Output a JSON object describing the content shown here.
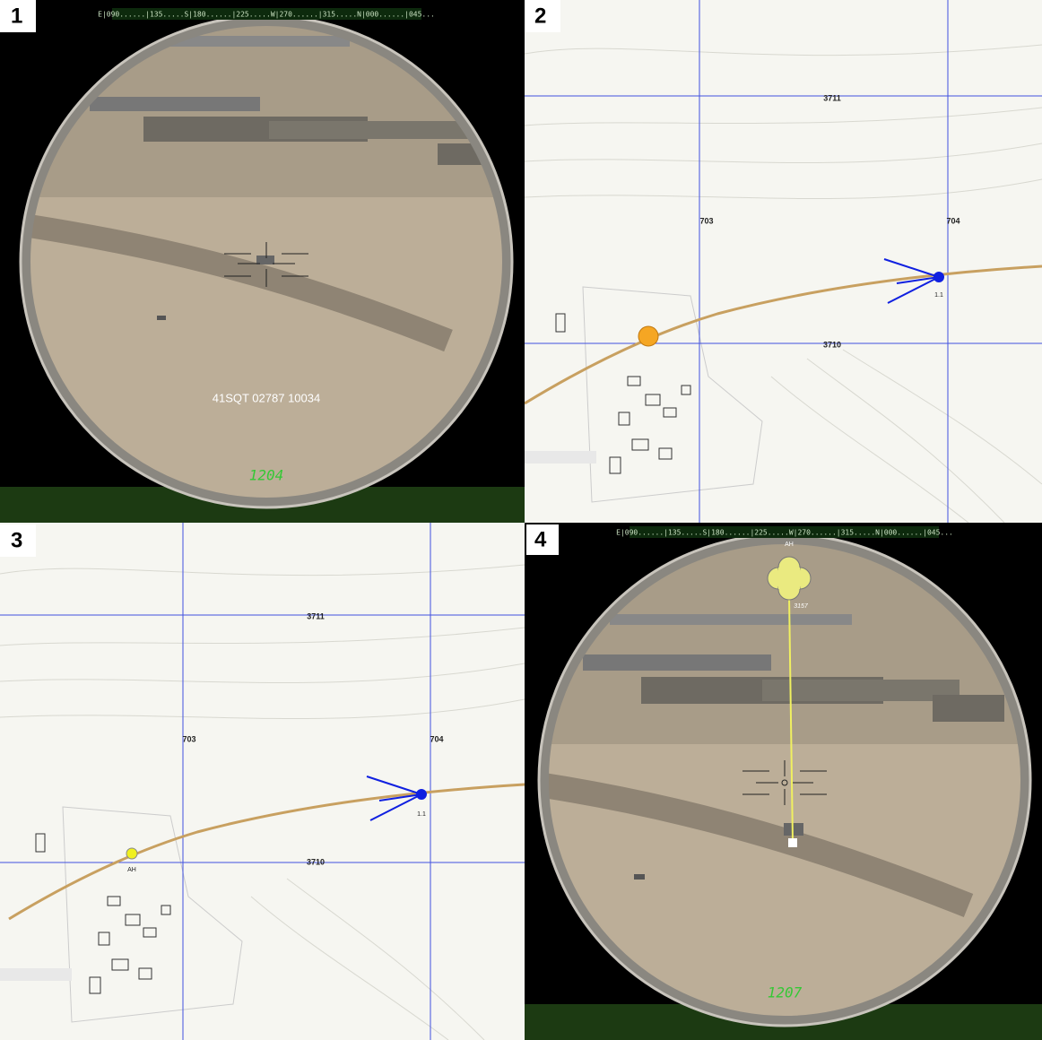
{
  "panels": [
    {
      "number": "1",
      "compass": "E|090......|135.....S|180......|225.....W|270......|315.....N|000......|045...",
      "grid_reference": "41SQT 02787 10034",
      "range": "1204"
    },
    {
      "number": "2",
      "grid_labels": [
        "3711",
        "703",
        "704",
        "3710"
      ],
      "marker_label": "1.1"
    },
    {
      "number": "3",
      "grid_labels": [
        "3711",
        "703",
        "704",
        "3710"
      ],
      "marker_label": "1.1",
      "target_label": "AH"
    },
    {
      "number": "4",
      "compass": "E|090......|135.....S|180......|225.....W|270......|315.....N|000......|045...",
      "target_label": "AH",
      "target_id": "3157",
      "range": "1207"
    }
  ]
}
